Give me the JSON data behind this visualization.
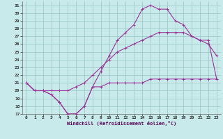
{
  "xlabel": "Windchill (Refroidissement éolien,°C)",
  "bg_color": "#c8eaea",
  "grid_color": "#a0cccc",
  "line_color": "#993399",
  "xlim": [
    -0.5,
    23.5
  ],
  "ylim": [
    17,
    31.5
  ],
  "yticks": [
    17,
    18,
    19,
    20,
    21,
    22,
    23,
    24,
    25,
    26,
    27,
    28,
    29,
    30,
    31
  ],
  "xticks": [
    0,
    1,
    2,
    3,
    4,
    5,
    6,
    7,
    8,
    9,
    10,
    11,
    12,
    13,
    14,
    15,
    16,
    17,
    18,
    19,
    20,
    21,
    22,
    23
  ],
  "series1_x": [
    0,
    1,
    2,
    3,
    4,
    5,
    6,
    7,
    8,
    9,
    10,
    11,
    12,
    13,
    14,
    15,
    16,
    17,
    18,
    19,
    20,
    21,
    22,
    23
  ],
  "series1_y": [
    21,
    20,
    20,
    19.5,
    18.5,
    17,
    17,
    18,
    20.5,
    20.5,
    21,
    21,
    21,
    21,
    21,
    21.5,
    21.5,
    21.5,
    21.5,
    21.5,
    21.5,
    21.5,
    21.5,
    21.5
  ],
  "series2_x": [
    0,
    1,
    2,
    3,
    4,
    5,
    6,
    7,
    8,
    9,
    10,
    11,
    12,
    13,
    14,
    15,
    16,
    17,
    18,
    19,
    20,
    21,
    22,
    23
  ],
  "series2_y": [
    21,
    20,
    20,
    20,
    20,
    20,
    20.5,
    21,
    22,
    23,
    24,
    25,
    25.5,
    26,
    26.5,
    27,
    27.5,
    27.5,
    27.5,
    27.5,
    27,
    26.5,
    26,
    24.5
  ],
  "series3_x": [
    0,
    1,
    2,
    3,
    4,
    5,
    6,
    7,
    8,
    9,
    10,
    11,
    12,
    13,
    14,
    15,
    16,
    17,
    18,
    19,
    20,
    21,
    22,
    23
  ],
  "series3_y": [
    21,
    20,
    20,
    19.5,
    18.5,
    17,
    17,
    18,
    20.5,
    22.5,
    24.5,
    26.5,
    27.5,
    28.5,
    30.5,
    31,
    30.5,
    30.5,
    29,
    28.5,
    27,
    26.5,
    26.5,
    21.5
  ]
}
